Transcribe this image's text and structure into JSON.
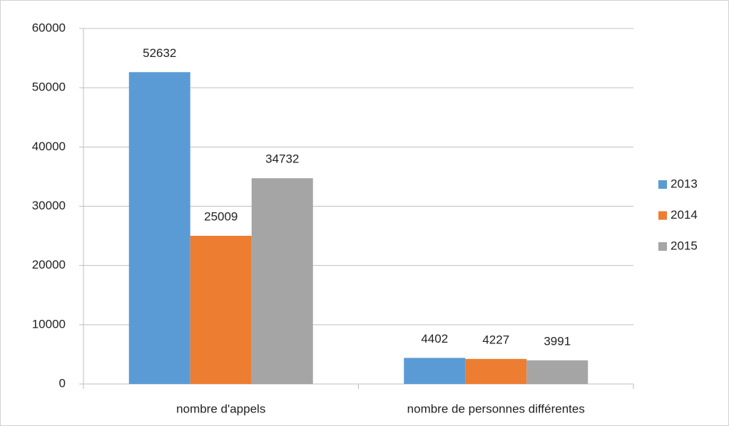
{
  "chart_data": {
    "type": "bar",
    "categories": [
      "nombre d'appels",
      "nombre de personnes différentes"
    ],
    "series": [
      {
        "name": "2013",
        "color": "#5b9bd5",
        "values": [
          52632,
          4402
        ]
      },
      {
        "name": "2014",
        "color": "#ed7d31",
        "values": [
          25009,
          4227
        ]
      },
      {
        "name": "2015",
        "color": "#a5a5a5",
        "values": [
          34732,
          3991
        ]
      }
    ],
    "ylim": [
      0,
      60000
    ],
    "yticks": [
      0,
      10000,
      20000,
      30000,
      40000,
      50000,
      60000
    ],
    "grid": true,
    "legend": "right",
    "data_labels": true
  }
}
